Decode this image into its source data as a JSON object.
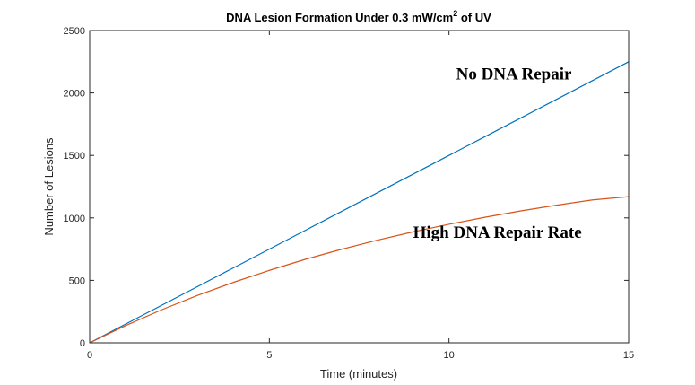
{
  "chart_data": {
    "type": "line",
    "title": {
      "prefix": "DNA Lesion Formation Under 0.3 mW/cm",
      "superscript": "2",
      "suffix": " of UV"
    },
    "xlabel": "Time (minutes)",
    "ylabel": "Number of Lesions",
    "xlim": [
      0,
      15
    ],
    "ylim": [
      0,
      2500
    ],
    "xticks": [
      0,
      5,
      10,
      15
    ],
    "yticks": [
      0,
      500,
      1000,
      1500,
      2000,
      2500
    ],
    "grid": false,
    "legend": "none",
    "series": [
      {
        "color": "#0072BD",
        "x": [
          0,
          1,
          2,
          3,
          4,
          5,
          6,
          7,
          8,
          9,
          10,
          11,
          12,
          13,
          14,
          15
        ],
        "y": [
          0,
          150,
          300,
          450,
          600,
          750,
          900,
          1050,
          1200,
          1350,
          1500,
          1650,
          1800,
          1950,
          2100,
          2250
        ]
      },
      {
        "color": "#D95319",
        "x": [
          0,
          1,
          2,
          3,
          4,
          5,
          6,
          7,
          8,
          9,
          10,
          11,
          12,
          13,
          14,
          15
        ],
        "y": [
          0,
          138,
          264,
          379,
          484,
          580,
          668,
          748,
          821,
          888,
          949,
          1005,
          1056,
          1102,
          1144,
          1170
        ]
      }
    ],
    "annotations": [
      {
        "text": "No DNA Repair",
        "x": 10.2,
        "y": 2110
      },
      {
        "text": "High DNA Repair Rate",
        "x": 9.0,
        "y": 840
      }
    ]
  }
}
